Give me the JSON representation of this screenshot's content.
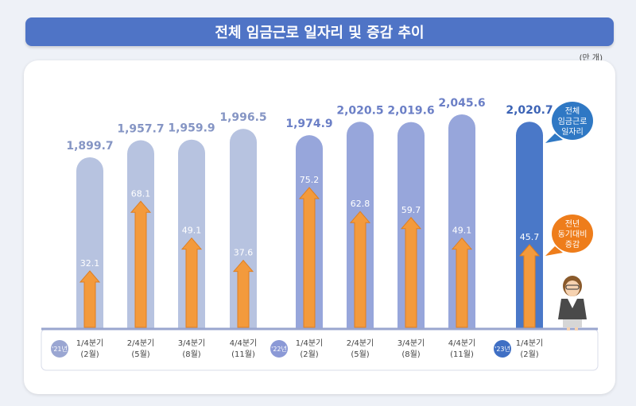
{
  "title": "전체 임금근로 일자리 및 증감 추이",
  "unit": "(만 개)",
  "callouts": {
    "total": [
      "전체",
      "임금근로",
      "일자리"
    ],
    "change": [
      "전년",
      "동기대비",
      "증감"
    ]
  },
  "colors": {
    "bar_2021": "#b7c3e0",
    "bar_2022": "#97a6db",
    "bar_2023": "#4a78c8",
    "arrow": "#f39a3c",
    "value_2021": "#8595c4",
    "value_2022": "#6b7fc6",
    "value_2023": "#3c63b5"
  },
  "chart_data": {
    "type": "bar",
    "title": "전체 임금근로 일자리 및 증감 추이",
    "ylabel": "",
    "unit": "(만 개)",
    "groups": [
      {
        "year": "'21년",
        "categories": [
          "1/4분기",
          "2/4분기",
          "3/4분기",
          "4/4분기"
        ],
        "months": [
          "(2월)",
          "(5월)",
          "(8월)",
          "(11월)"
        ]
      },
      {
        "year": "'22년",
        "categories": [
          "1/4분기",
          "2/4분기",
          "3/4분기",
          "4/4분기"
        ],
        "months": [
          "(2월)",
          "(5월)",
          "(8월)",
          "(11월)"
        ]
      },
      {
        "year": "'23년",
        "categories": [
          "1/4분기"
        ],
        "months": [
          "(2월)"
        ]
      }
    ],
    "series": [
      {
        "name": "전체 임금근로 일자리",
        "values": [
          1899.7,
          1957.7,
          1959.9,
          1996.5,
          1974.9,
          2020.5,
          2019.6,
          2045.6,
          2020.7
        ]
      },
      {
        "name": "전년 동기대비 증감",
        "values": [
          32.1,
          68.1,
          49.1,
          37.6,
          75.2,
          62.8,
          59.7,
          49.1,
          45.7
        ]
      }
    ],
    "total_labels": [
      "1,899.7",
      "1,957.7",
      "1,959.9",
      "1,996.5",
      "1,974.9",
      "2,020.5",
      "2,019.6",
      "2,045.6",
      "2,020.7"
    ],
    "change_labels": [
      "32.1",
      "68.1",
      "49.1",
      "37.6",
      "75.2",
      "62.8",
      "59.7",
      "49.1",
      "45.7"
    ]
  }
}
